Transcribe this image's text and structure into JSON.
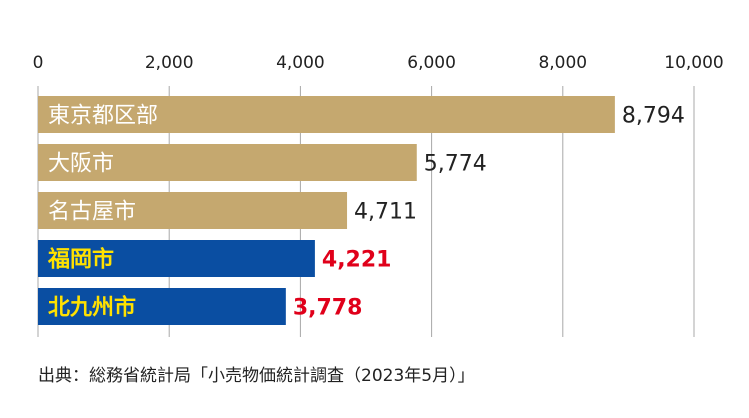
{
  "chart_data": {
    "type": "bar",
    "orientation": "horizontal",
    "title": "",
    "xlabel": "",
    "ylabel": "",
    "xlim": [
      0,
      10000
    ],
    "x_ticks": [
      0,
      2000,
      4000,
      6000,
      8000,
      10000
    ],
    "x_tick_labels": [
      "0",
      "2,000",
      "4,000",
      "6,000",
      "8,000",
      "10,000"
    ],
    "grid": "vertical",
    "categories": [
      "東京都区部",
      "大阪市",
      "名古屋市",
      "福岡市",
      "北九州市"
    ],
    "values": [
      8794,
      5774,
      4711,
      4221,
      3778
    ],
    "value_labels": [
      "8,794",
      "5,774",
      "4,711",
      "4,221",
      "3,778"
    ],
    "bar_colors": [
      "#c5a86f",
      "#c5a86f",
      "#c5a86f",
      "#0a4ea2",
      "#0a4ea2"
    ],
    "category_label_colors": [
      "#ffffff",
      "#ffffff",
      "#ffffff",
      "#ffe100",
      "#ffe100"
    ],
    "value_label_colors": [
      "#222222",
      "#222222",
      "#222222",
      "#e0001a",
      "#e0001a"
    ],
    "highlighted": [
      false,
      false,
      false,
      true,
      true
    ]
  },
  "source": "出典：総務省統計局「小売物価統計調査（2023年5月）」"
}
